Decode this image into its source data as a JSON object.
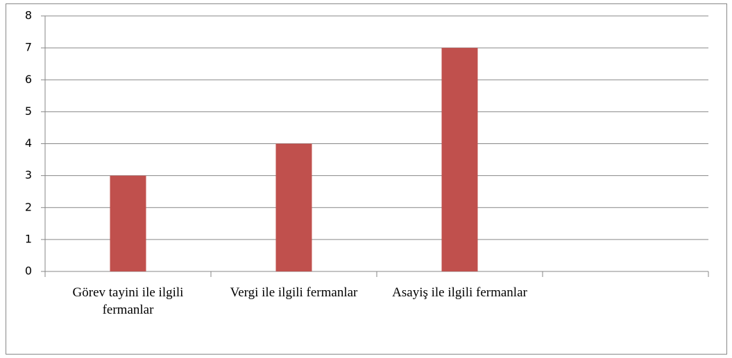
{
  "chart_data": {
    "type": "bar",
    "categories": [
      "Görev tayini ile ilgili fermanlar",
      "Vergi ile ilgili fermanlar",
      "Asayiş ile ilgili fermanlar",
      null
    ],
    "values": [
      3,
      4,
      7,
      null
    ],
    "color": "#c0504d",
    "ylim": [
      0,
      8
    ],
    "yticks": [
      0,
      1,
      2,
      3,
      4,
      5,
      6,
      7,
      8
    ],
    "grid": true
  }
}
